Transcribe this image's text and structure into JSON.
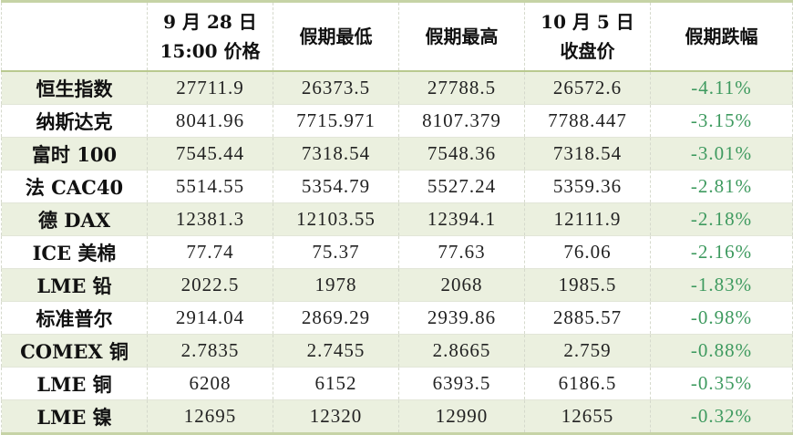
{
  "headers": [
    "",
    "9月28日\n15:00价格",
    "假期最低",
    "假期最高",
    "10月5日\n收盘价",
    "假期跌幅"
  ],
  "header_lines": [
    [
      ""
    ],
    [
      "9 月 28 日",
      "15:00 价格"
    ],
    [
      "假期最低"
    ],
    [
      "假期最高"
    ],
    [
      "10 月 5 日",
      "收盘价"
    ],
    [
      "假期跌幅"
    ]
  ],
  "rows": [
    [
      "恒生指数",
      "27711.9",
      "26373.5",
      "27788.5",
      "26572.6",
      "-4.11%"
    ],
    [
      "纳斯达克",
      "8041.96",
      "7715.971",
      "8107.379",
      "7788.447",
      "-3.15%"
    ],
    [
      "富时 100",
      "7545.44",
      "7318.54",
      "7548.36",
      "7318.54",
      "-3.01%"
    ],
    [
      "法 CAC40",
      "5514.55",
      "5354.79",
      "5527.24",
      "5359.36",
      "-2.81%"
    ],
    [
      "德 DAX",
      "12381.3",
      "12103.55",
      "12394.1",
      "12111.9",
      "-2.18%"
    ],
    [
      "ICE 美棉",
      "77.74",
      "75.37",
      "77.63",
      "76.06",
      "-2.16%"
    ],
    [
      "LME 铅",
      "2022.5",
      "1978",
      "2068",
      "1985.5",
      "-1.83%"
    ],
    [
      "标准普尔",
      "2914.04",
      "2869.29",
      "2939.86",
      "2885.57",
      "-0.98%"
    ],
    [
      "COMEX 铜",
      "2.7835",
      "2.7455",
      "2.8665",
      "2.759",
      "-0.88%"
    ],
    [
      "LME 铜",
      "6208",
      "6152",
      "6393.5",
      "6186.5",
      "-0.35%"
    ],
    [
      "LME 镍",
      "12695",
      "12320",
      "12990",
      "12655",
      "-0.32%"
    ]
  ],
  "colors": {
    "change_text": "#3e9a5f",
    "alt_row_bg": "#ebf0df",
    "border": "#c6d3a6"
  }
}
